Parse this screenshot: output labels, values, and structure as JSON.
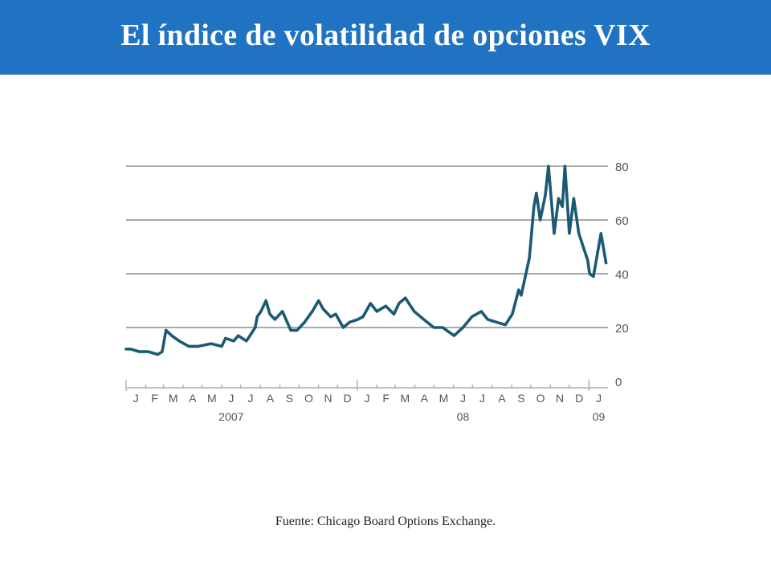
{
  "header": {
    "title": "El índice de volatilidad de opciones VIX"
  },
  "source_note": "Fuente: Chicago Board Options Exchange.",
  "colors": {
    "header_bg": "#2072c2",
    "line": "#1c5a73",
    "grid": "#a9a9a9",
    "tick_text": "#555555"
  },
  "chart_data": {
    "type": "line",
    "title": "",
    "xlabel": "",
    "ylabel": "",
    "ylim": [
      0,
      80
    ],
    "y_ticks": [
      0,
      20,
      40,
      60,
      80
    ],
    "grid": true,
    "month_labels": [
      "J",
      "F",
      "M",
      "A",
      "M",
      "J",
      "J",
      "A",
      "S",
      "O",
      "N",
      "D",
      "J",
      "F",
      "M",
      "A",
      "M",
      "J",
      "J",
      "A",
      "S",
      "O",
      "N",
      "D",
      "J"
    ],
    "year_labels": [
      {
        "label": "2007",
        "month_index": 5
      },
      {
        "label": "08",
        "month_index": 17
      },
      {
        "label": "09",
        "month_index": 24
      }
    ],
    "series": [
      {
        "x": [
          "2007-01-01",
          "2007-01-08",
          "2007-01-22",
          "2007-02-05",
          "2007-02-20",
          "2007-02-27",
          "2007-03-05",
          "2007-03-14",
          "2007-03-26",
          "2007-04-10",
          "2007-04-25",
          "2007-05-15",
          "2007-06-01",
          "2007-06-07",
          "2007-06-20",
          "2007-06-27",
          "2007-07-10",
          "2007-07-24",
          "2007-07-27",
          "2007-08-02",
          "2007-08-10",
          "2007-08-16",
          "2007-08-24",
          "2007-09-05",
          "2007-09-18",
          "2007-09-28",
          "2007-10-10",
          "2007-10-22",
          "2007-11-01",
          "2007-11-08",
          "2007-11-20",
          "2007-11-28",
          "2007-12-10",
          "2007-12-20",
          "2008-01-02",
          "2008-01-10",
          "2008-01-22",
          "2008-02-01",
          "2008-02-15",
          "2008-02-28",
          "2008-03-07",
          "2008-03-17",
          "2008-03-31",
          "2008-04-15",
          "2008-05-01",
          "2008-05-15",
          "2008-06-02",
          "2008-06-16",
          "2008-06-30",
          "2008-07-15",
          "2008-07-25",
          "2008-08-08",
          "2008-08-22",
          "2008-09-02",
          "2008-09-12",
          "2008-09-16",
          "2008-09-29",
          "2008-10-06",
          "2008-10-10",
          "2008-10-16",
          "2008-10-24",
          "2008-10-29",
          "2008-11-07",
          "2008-11-14",
          "2008-11-20",
          "2008-11-24",
          "2008-12-01",
          "2008-12-08",
          "2008-12-16",
          "2008-12-30",
          "2009-01-02",
          "2009-01-08",
          "2009-01-14",
          "2009-01-20",
          "2009-01-28"
        ],
        "values": [
          12,
          12,
          11,
          11,
          10,
          11,
          19,
          17,
          15,
          13,
          13,
          14,
          13,
          16,
          15,
          17,
          15,
          20,
          24,
          26,
          30,
          25,
          23,
          26,
          19,
          19,
          22,
          26,
          30,
          27,
          24,
          25,
          20,
          22,
          23,
          24,
          29,
          26,
          28,
          25,
          29,
          31,
          26,
          23,
          20,
          20,
          17,
          20,
          24,
          26,
          23,
          22,
          21,
          25,
          34,
          32,
          46,
          65,
          70,
          60,
          69,
          80,
          55,
          68,
          65,
          80,
          55,
          68,
          55,
          45,
          40,
          39,
          47,
          55,
          44
        ]
      }
    ]
  }
}
